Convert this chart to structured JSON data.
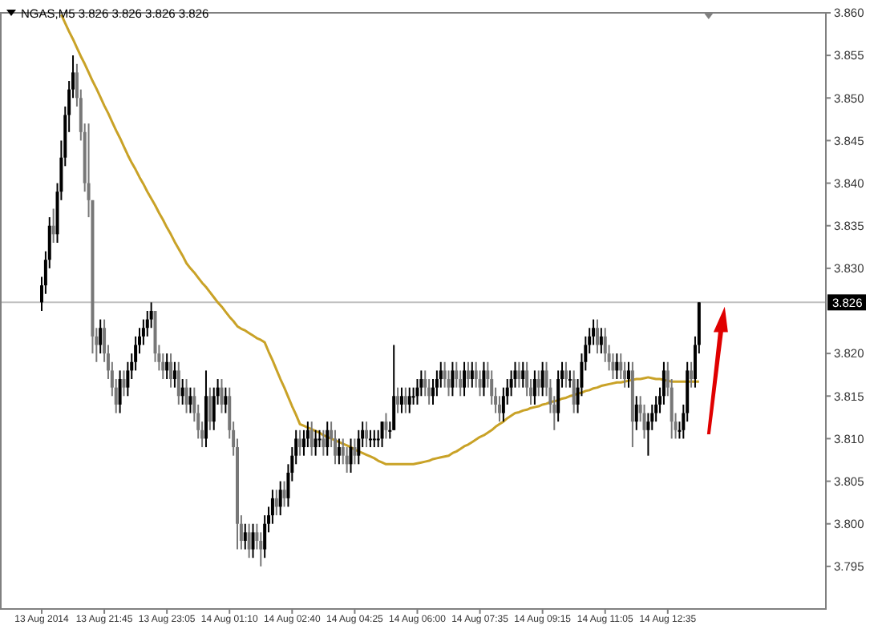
{
  "chart_data": {
    "type": "candlestick",
    "title": "NGAS,M5 3.826 3.826 3.826 3.826",
    "categories": [
      "13 Aug 2014",
      null,
      null,
      null,
      null,
      null,
      null,
      null,
      null,
      null,
      null,
      null,
      null,
      null,
      null,
      null,
      "13 Aug 21:45",
      null,
      null,
      null,
      null,
      null,
      null,
      null,
      null,
      null,
      null,
      null,
      null,
      null,
      null,
      null,
      "13 Aug 23:05",
      null,
      null,
      null,
      null,
      null,
      null,
      null,
      null,
      null,
      null,
      null,
      null,
      null,
      null,
      null,
      "14 Aug 01:10",
      null,
      null,
      null,
      null,
      null,
      null,
      null,
      null,
      null,
      null,
      null,
      null,
      null,
      null,
      null,
      "14 Aug 02:40",
      null,
      null,
      null,
      null,
      null,
      null,
      null,
      null,
      null,
      null,
      null,
      null,
      null,
      null,
      null,
      "14 Aug 04:25",
      null,
      null,
      null,
      null,
      null,
      null,
      null,
      null,
      null,
      null,
      null,
      null,
      null,
      null,
      null,
      "14 Aug 06:00",
      null,
      null,
      null,
      null,
      null,
      null,
      null,
      null,
      null,
      null,
      null,
      null,
      null,
      null,
      null,
      "14 Aug 07:35",
      null,
      null,
      null,
      null,
      null,
      null,
      null,
      null,
      null,
      null,
      null,
      null,
      null,
      null,
      null,
      "14 Aug 09:15",
      null,
      null,
      null,
      null,
      null,
      null,
      null,
      null,
      null,
      null,
      null,
      null,
      null,
      null,
      null,
      "14 Aug 11:05",
      null,
      null,
      null,
      null,
      null,
      null,
      null,
      null,
      null,
      null,
      null,
      null,
      null,
      null,
      null,
      "14 Aug 12:35",
      null,
      null,
      null,
      null,
      null,
      null,
      null,
      null
    ],
    "ohlc": [
      [
        3.826,
        3.829,
        3.825,
        3.828
      ],
      [
        3.828,
        3.832,
        3.827,
        3.831
      ],
      [
        3.831,
        3.836,
        3.83,
        3.835
      ],
      [
        3.835,
        3.837,
        3.833,
        3.834
      ],
      [
        3.834,
        3.84,
        3.833,
        3.839
      ],
      [
        3.839,
        3.845,
        3.838,
        3.843
      ],
      [
        3.843,
        3.849,
        3.842,
        3.848
      ],
      [
        3.848,
        3.852,
        3.846,
        3.851
      ],
      [
        3.851,
        3.855,
        3.85,
        3.853
      ],
      [
        3.853,
        3.854,
        3.849,
        3.85
      ],
      [
        3.85,
        3.851,
        3.845,
        3.846
      ],
      [
        3.846,
        3.847,
        3.839,
        3.84
      ],
      [
        3.84,
        3.847,
        3.836,
        3.838
      ],
      [
        3.838,
        3.838,
        3.82,
        3.822
      ],
      [
        3.822,
        3.823,
        3.819,
        3.821
      ],
      [
        3.821,
        3.824,
        3.82,
        3.823
      ],
      [
        3.823,
        3.824,
        3.819,
        3.82
      ],
      [
        3.82,
        3.821,
        3.817,
        3.818
      ],
      [
        3.818,
        3.819,
        3.815,
        3.816
      ],
      [
        3.816,
        3.817,
        3.813,
        3.814
      ],
      [
        3.814,
        3.818,
        3.813,
        3.817
      ],
      [
        3.817,
        3.818,
        3.815,
        3.816
      ],
      [
        3.816,
        3.819,
        3.815,
        3.818
      ],
      [
        3.818,
        3.82,
        3.817,
        3.819
      ],
      [
        3.819,
        3.822,
        3.818,
        3.821
      ],
      [
        3.821,
        3.823,
        3.82,
        3.822
      ],
      [
        3.822,
        3.824,
        3.821,
        3.823
      ],
      [
        3.823,
        3.825,
        3.822,
        3.824
      ],
      [
        3.824,
        3.826,
        3.823,
        3.825
      ],
      [
        3.825,
        3.825,
        3.819,
        3.82
      ],
      [
        3.82,
        3.821,
        3.818,
        3.819
      ],
      [
        3.819,
        3.82,
        3.817,
        3.818
      ],
      [
        3.818,
        3.82,
        3.817,
        3.819
      ],
      [
        3.819,
        3.82,
        3.816,
        3.817
      ],
      [
        3.817,
        3.819,
        3.816,
        3.818
      ],
      [
        3.818,
        3.819,
        3.814,
        3.815
      ],
      [
        3.815,
        3.817,
        3.814,
        3.816
      ],
      [
        3.816,
        3.817,
        3.813,
        3.814
      ],
      [
        3.814,
        3.816,
        3.813,
        3.815
      ],
      [
        3.815,
        3.816,
        3.812,
        3.813
      ],
      [
        3.813,
        3.814,
        3.81,
        3.811
      ],
      [
        3.811,
        3.812,
        3.809,
        3.81
      ],
      [
        3.81,
        3.818,
        3.809,
        3.815
      ],
      [
        3.815,
        3.816,
        3.811,
        3.812
      ],
      [
        3.812,
        3.816,
        3.811,
        3.815
      ],
      [
        3.815,
        3.817,
        3.814,
        3.816
      ],
      [
        3.816,
        3.817,
        3.813,
        3.814
      ],
      [
        3.814,
        3.816,
        3.813,
        3.815
      ],
      [
        3.815,
        3.816,
        3.81,
        3.811
      ],
      [
        3.811,
        3.812,
        3.808,
        3.809
      ],
      [
        3.809,
        3.81,
        3.797,
        3.8
      ],
      [
        3.8,
        3.801,
        3.797,
        3.798
      ],
      [
        3.798,
        3.8,
        3.797,
        3.799
      ],
      [
        3.799,
        3.8,
        3.796,
        3.797
      ],
      [
        3.797,
        3.8,
        3.796,
        3.799
      ],
      [
        3.799,
        3.8,
        3.797,
        3.798
      ],
      [
        3.798,
        3.799,
        3.795,
        3.797
      ],
      [
        3.797,
        3.801,
        3.796,
        3.8
      ],
      [
        3.8,
        3.802,
        3.799,
        3.801
      ],
      [
        3.801,
        3.804,
        3.8,
        3.803
      ],
      [
        3.803,
        3.804,
        3.801,
        3.802
      ],
      [
        3.802,
        3.805,
        3.801,
        3.804
      ],
      [
        3.804,
        3.805,
        3.802,
        3.803
      ],
      [
        3.803,
        3.807,
        3.802,
        3.806
      ],
      [
        3.806,
        3.809,
        3.805,
        3.808
      ],
      [
        3.808,
        3.811,
        3.807,
        3.81
      ],
      [
        3.81,
        3.811,
        3.808,
        3.809
      ],
      [
        3.809,
        3.811,
        3.808,
        3.81
      ],
      [
        3.81,
        3.812,
        3.809,
        3.811
      ],
      [
        3.811,
        3.812,
        3.808,
        3.809
      ],
      [
        3.809,
        3.811,
        3.808,
        3.81
      ],
      [
        3.81,
        3.811,
        3.809,
        3.81
      ],
      [
        3.81,
        3.811,
        3.808,
        3.809
      ],
      [
        3.809,
        3.812,
        3.808,
        3.811
      ],
      [
        3.811,
        3.812,
        3.809,
        3.81
      ],
      [
        3.81,
        3.811,
        3.807,
        3.808
      ],
      [
        3.808,
        3.81,
        3.807,
        3.809
      ],
      [
        3.809,
        3.81,
        3.807,
        3.808
      ],
      [
        3.808,
        3.809,
        3.806,
        3.807
      ],
      [
        3.807,
        3.81,
        3.806,
        3.809
      ],
      [
        3.809,
        3.81,
        3.807,
        3.808
      ],
      [
        3.808,
        3.811,
        3.807,
        3.81
      ],
      [
        3.81,
        3.812,
        3.809,
        3.811
      ],
      [
        3.811,
        3.812,
        3.809,
        3.81
      ],
      [
        3.81,
        3.811,
        3.809,
        3.81
      ],
      [
        3.81,
        3.811,
        3.809,
        3.81
      ],
      [
        3.81,
        3.811,
        3.809,
        3.81
      ],
      [
        3.81,
        3.812,
        3.809,
        3.812
      ],
      [
        3.812,
        3.813,
        3.81,
        3.811
      ],
      [
        3.811,
        3.812,
        3.81,
        3.811
      ],
      [
        3.811,
        3.821,
        3.811,
        3.815
      ],
      [
        3.815,
        3.816,
        3.813,
        3.814
      ],
      [
        3.814,
        3.816,
        3.813,
        3.815
      ],
      [
        3.815,
        3.816,
        3.813,
        3.814
      ],
      [
        3.814,
        3.816,
        3.813,
        3.815
      ],
      [
        3.815,
        3.816,
        3.814,
        3.815
      ],
      [
        3.815,
        3.817,
        3.814,
        3.816
      ],
      [
        3.816,
        3.818,
        3.815,
        3.817
      ],
      [
        3.817,
        3.818,
        3.815,
        3.816
      ],
      [
        3.816,
        3.817,
        3.814,
        3.815
      ],
      [
        3.815,
        3.817,
        3.814,
        3.816
      ],
      [
        3.816,
        3.818,
        3.815,
        3.817
      ],
      [
        3.817,
        3.819,
        3.816,
        3.818
      ],
      [
        3.818,
        3.819,
        3.816,
        3.817
      ],
      [
        3.817,
        3.818,
        3.815,
        3.816
      ],
      [
        3.816,
        3.819,
        3.815,
        3.818
      ],
      [
        3.818,
        3.819,
        3.816,
        3.817
      ],
      [
        3.817,
        3.818,
        3.815,
        3.816
      ],
      [
        3.816,
        3.819,
        3.815,
        3.818
      ],
      [
        3.818,
        3.819,
        3.816,
        3.817
      ],
      [
        3.817,
        3.819,
        3.816,
        3.818
      ],
      [
        3.818,
        3.819,
        3.816,
        3.817
      ],
      [
        3.817,
        3.818,
        3.815,
        3.816
      ],
      [
        3.816,
        3.819,
        3.815,
        3.818
      ],
      [
        3.818,
        3.819,
        3.816,
        3.817
      ],
      [
        3.817,
        3.818,
        3.814,
        3.815
      ],
      [
        3.815,
        3.816,
        3.813,
        3.814
      ],
      [
        3.814,
        3.815,
        3.812,
        3.813
      ],
      [
        3.813,
        3.816,
        3.812,
        3.815
      ],
      [
        3.815,
        3.817,
        3.814,
        3.816
      ],
      [
        3.816,
        3.818,
        3.815,
        3.817
      ],
      [
        3.817,
        3.819,
        3.816,
        3.818
      ],
      [
        3.818,
        3.819,
        3.816,
        3.817
      ],
      [
        3.817,
        3.819,
        3.816,
        3.818
      ],
      [
        3.818,
        3.819,
        3.815,
        3.816
      ],
      [
        3.816,
        3.817,
        3.814,
        3.815
      ],
      [
        3.815,
        3.818,
        3.814,
        3.817
      ],
      [
        3.817,
        3.818,
        3.815,
        3.816
      ],
      [
        3.816,
        3.819,
        3.815,
        3.818
      ],
      [
        3.818,
        3.819,
        3.815,
        3.816
      ],
      [
        3.816,
        3.817,
        3.813,
        3.814
      ],
      [
        3.814,
        3.815,
        3.811,
        3.813
      ],
      [
        3.813,
        3.818,
        3.812,
        3.817
      ],
      [
        3.817,
        3.819,
        3.816,
        3.818
      ],
      [
        3.818,
        3.819,
        3.816,
        3.817
      ],
      [
        3.817,
        3.818,
        3.816,
        3.817
      ],
      [
        3.817,
        3.818,
        3.813,
        3.814
      ],
      [
        3.814,
        3.817,
        3.813,
        3.816
      ],
      [
        3.816,
        3.82,
        3.815,
        3.819
      ],
      [
        3.819,
        3.822,
        3.818,
        3.821
      ],
      [
        3.821,
        3.823,
        3.82,
        3.822
      ],
      [
        3.822,
        3.824,
        3.821,
        3.823
      ],
      [
        3.823,
        3.824,
        3.82,
        3.821
      ],
      [
        3.821,
        3.823,
        3.82,
        3.822
      ],
      [
        3.822,
        3.823,
        3.819,
        3.82
      ],
      [
        3.82,
        3.821,
        3.818,
        3.819
      ],
      [
        3.819,
        3.82,
        3.817,
        3.818
      ],
      [
        3.818,
        3.82,
        3.817,
        3.819
      ],
      [
        3.819,
        3.82,
        3.817,
        3.818
      ],
      [
        3.818,
        3.819,
        3.816,
        3.817
      ],
      [
        3.817,
        3.819,
        3.816,
        3.818
      ],
      [
        3.818,
        3.819,
        3.809,
        3.812
      ],
      [
        3.812,
        3.815,
        3.811,
        3.814
      ],
      [
        3.814,
        3.815,
        3.812,
        3.813
      ],
      [
        3.813,
        3.814,
        3.81,
        3.811
      ],
      [
        3.811,
        3.813,
        3.808,
        3.812
      ],
      [
        3.812,
        3.814,
        3.811,
        3.813
      ],
      [
        3.813,
        3.815,
        3.812,
        3.814
      ],
      [
        3.814,
        3.816,
        3.813,
        3.815
      ],
      [
        3.815,
        3.819,
        3.814,
        3.818
      ],
      [
        3.818,
        3.819,
        3.815,
        3.816
      ],
      [
        3.816,
        3.817,
        3.81,
        3.812
      ],
      [
        3.812,
        3.813,
        3.81,
        3.811
      ],
      [
        3.811,
        3.812,
        3.81,
        3.811
      ],
      [
        3.811,
        3.814,
        3.81,
        3.813
      ],
      [
        3.813,
        3.819,
        3.812,
        3.818
      ],
      [
        3.818,
        3.819,
        3.816,
        3.817
      ],
      [
        3.817,
        3.822,
        3.816,
        3.821
      ],
      [
        3.821,
        3.826,
        3.82,
        3.826
      ]
    ],
    "series": [
      {
        "type": "line",
        "color": "#c9a227",
        "values": [
          null,
          null,
          null,
          null,
          null,
          3.8598,
          3.8588,
          3.8578,
          3.8569,
          3.8559,
          3.8549,
          3.854,
          3.853,
          3.852,
          3.8511,
          3.8501,
          3.8491,
          3.8482,
          3.8472,
          3.8462,
          3.8453,
          3.8443,
          3.8433,
          3.8424,
          3.8416,
          3.8407,
          3.8399,
          3.839,
          3.8382,
          3.8374,
          3.8365,
          3.8357,
          3.8348,
          3.834,
          3.8331,
          3.8323,
          3.8315,
          3.8306,
          3.83,
          3.8295,
          3.8289,
          3.8283,
          3.8278,
          3.8272,
          3.8266,
          3.826,
          3.8255,
          3.8249,
          3.8243,
          3.8238,
          3.8232,
          3.8229,
          3.8227,
          3.8224,
          3.8221,
          3.8218,
          3.8216,
          3.8213,
          3.8202,
          3.8192,
          3.8181,
          3.817,
          3.816,
          3.8149,
          3.8138,
          3.8128,
          3.8117,
          3.8115,
          3.8113,
          3.8111,
          3.8109,
          3.8107,
          3.8104,
          3.8102,
          3.81,
          3.8098,
          3.8096,
          3.8094,
          3.8092,
          3.809,
          3.8087,
          3.8085,
          3.8083,
          3.8081,
          3.8079,
          3.8077,
          3.8074,
          3.8072,
          3.807,
          3.807,
          3.807,
          3.807,
          3.807,
          3.807,
          3.807,
          3.807,
          3.8071,
          3.8072,
          3.8073,
          3.8074,
          3.8076,
          3.8077,
          3.8078,
          3.8079,
          3.808,
          3.8083,
          3.8085,
          3.8088,
          3.8091,
          3.8093,
          3.8096,
          3.8099,
          3.8102,
          3.8104,
          3.8107,
          3.811,
          3.8114,
          3.8117,
          3.812,
          3.8124,
          3.8127,
          3.813,
          3.8131,
          3.8133,
          3.8134,
          3.8136,
          3.8137,
          3.8138,
          3.814,
          3.8141,
          3.8143,
          3.8144,
          3.8145,
          3.8147,
          3.8148,
          3.815,
          3.8151,
          3.8153,
          3.8154,
          3.8156,
          3.8157,
          3.8159,
          3.816,
          3.8162,
          3.8163,
          3.8164,
          3.8165,
          3.8166,
          3.8166,
          3.8167,
          3.8168,
          3.8169,
          3.817,
          3.817,
          3.8171,
          3.8172,
          3.8171,
          3.817,
          3.817,
          3.8169,
          3.8168,
          3.8167,
          3.8167,
          3.8167,
          3.8167,
          3.8167,
          3.8167,
          3.8167,
          3.8167
        ]
      }
    ],
    "ylim": [
      3.79,
      3.86
    ],
    "yticks": [
      3.795,
      {
        "value": 3.8,
        "label": "3.800"
      },
      3.805,
      {
        "value": 3.81,
        "label": "3.810"
      },
      3.815,
      {
        "value": 3.82,
        "label": "3.820"
      },
      {
        "value": 3.83,
        "label": "3.830"
      },
      3.835,
      {
        "value": 3.84,
        "label": "3.840"
      },
      3.845,
      {
        "value": 3.85,
        "label": "3.850"
      },
      3.855,
      {
        "value": 3.86,
        "label": "3.860"
      }
    ],
    "ref_lines": [
      {
        "axis": "y",
        "value": 3.826,
        "label": "3.826",
        "color": "#c0c0c0"
      }
    ],
    "grid": false
  }
}
